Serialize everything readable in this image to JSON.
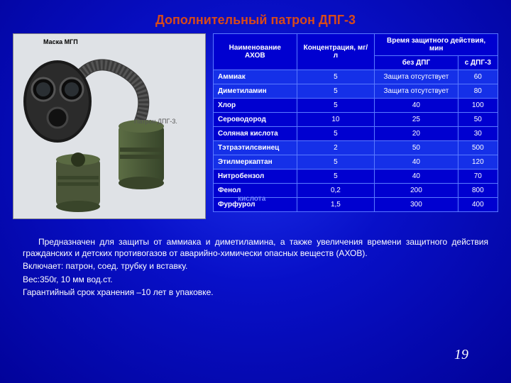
{
  "title": "Дополнительный патрон ДПГ-3",
  "image": {
    "mask_label": "Маска МГП",
    "cartridge_label": "Патрон\nДПГ-3."
  },
  "table": {
    "header": {
      "name": "Наименование АХОВ",
      "conc": "Концентрация, мг/л",
      "time_group": "Время защитного действия, мин",
      "without": "без ДПГ",
      "with": "с ДПГ-3"
    },
    "rows": [
      {
        "name": "Аммиак",
        "c": "5",
        "a": "Защита отсутствует",
        "b": "60",
        "merge": true,
        "hl": true
      },
      {
        "name": "Диметиламин",
        "c": "5",
        "a": "Защита отсутствует",
        "b": "80",
        "merge": true,
        "hl": true
      },
      {
        "name": "Хлор",
        "c": "5",
        "a": "40",
        "b": "100"
      },
      {
        "name": "Сероводород",
        "c": "10",
        "a": "25",
        "b": "50"
      },
      {
        "name": "Соляная кислота",
        "c": "5",
        "a": "20",
        "b": "30"
      },
      {
        "name": "Тэтраэтилсвинец",
        "c": "2",
        "a": "50",
        "b": "500",
        "hl": true
      },
      {
        "name": "Этилмеркаптан",
        "c": "5",
        "a": "40",
        "b": "120",
        "hl": true
      },
      {
        "name": "Нитробензол",
        "c": "5",
        "a": "40",
        "b": "70"
      },
      {
        "name": "Фенол",
        "c": "0,2",
        "a": "200",
        "b": "800"
      },
      {
        "name": "Фурфурол",
        "c": "1,5",
        "a": "300",
        "b": "400"
      }
    ]
  },
  "back_word": "кислота",
  "description": {
    "p1": "Предназначен для защиты от аммиака и диметиламина, а также увеличения времени защитного действия гражданских и детских противогазов от аварийно-химически опасных веществ (АХОВ).",
    "p2": "Включает:  патрон, соед. трубку и вставку.",
    "p3": "Вес:350г, 10 мм вод.ст.",
    "p4": "Гарантийный срок хранения –10 лет в упаковке."
  },
  "page_number": "19",
  "colors": {
    "title": "#d74a1a",
    "table_bg": "#0000d0",
    "table_border": "#5a7aff",
    "table_hl": "#1530e8"
  }
}
